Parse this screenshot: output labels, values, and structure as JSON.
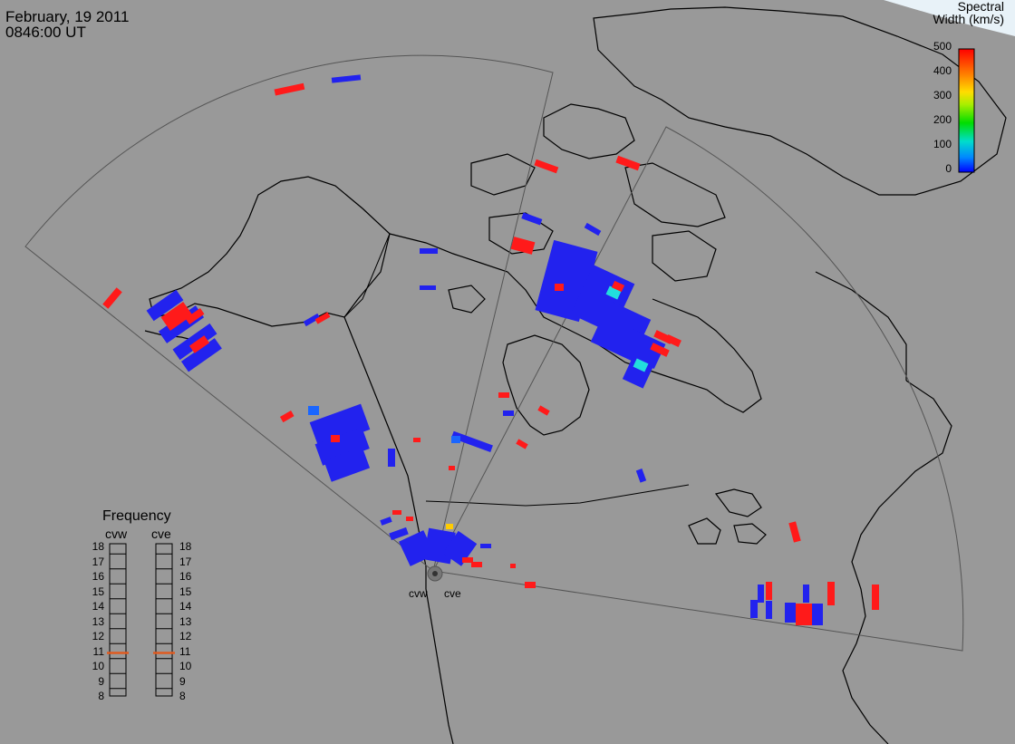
{
  "header": {
    "date": "February, 19 2011",
    "time": "0846:00 UT"
  },
  "colorbar": {
    "title_line1": "Spectral",
    "title_line2": "Width (km/s)",
    "ticks": [
      "500",
      "400",
      "300",
      "200",
      "100",
      "0"
    ],
    "range": [
      0,
      500
    ],
    "colors": [
      "#0000ff",
      "#00aaff",
      "#00ffcc",
      "#00ff00",
      "#aaff00",
      "#ffff00",
      "#ff8800",
      "#ff0000"
    ]
  },
  "frequency_panel": {
    "title": "Frequency",
    "radars": [
      {
        "name": "cvw",
        "selected_mhz": 11
      },
      {
        "name": "cve",
        "selected_mhz": 11
      }
    ],
    "ticks": [
      "18",
      "17",
      "16",
      "15",
      "14",
      "13",
      "12",
      "11",
      "10",
      "9",
      "8"
    ],
    "marker_color": "#e05a20"
  },
  "radar_sites": {
    "west_label": "cvw",
    "east_label": "cve"
  },
  "colors": {
    "background": "#999999",
    "land_outline": "#000000",
    "fov_outline": "#555555",
    "low_width": "#2222ee",
    "high_width": "#ff1a1a",
    "mid_width": "#22dddd"
  }
}
